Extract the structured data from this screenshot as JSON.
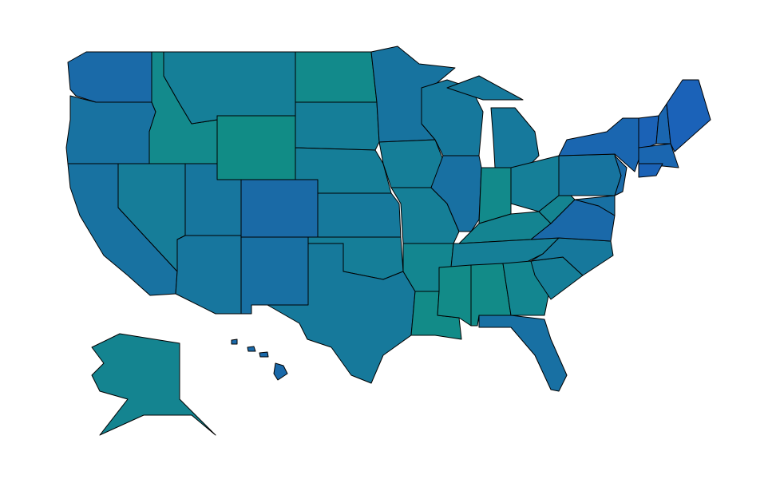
{
  "map": {
    "type": "choropleth",
    "region": "United States",
    "states": [
      {
        "id": "WA",
        "color": "#1a6aa8"
      },
      {
        "id": "OR",
        "color": "#1872a1"
      },
      {
        "id": "CA",
        "color": "#1872a1"
      },
      {
        "id": "NV",
        "color": "#167d99"
      },
      {
        "id": "ID",
        "color": "#138a8c"
      },
      {
        "id": "MT",
        "color": "#157f98"
      },
      {
        "id": "WY",
        "color": "#118c86"
      },
      {
        "id": "UT",
        "color": "#17769e"
      },
      {
        "id": "CO",
        "color": "#1a6aa6"
      },
      {
        "id": "AZ",
        "color": "#17769e"
      },
      {
        "id": "NM",
        "color": "#1870a3"
      },
      {
        "id": "ND",
        "color": "#128a8b"
      },
      {
        "id": "SD",
        "color": "#157e98"
      },
      {
        "id": "NE",
        "color": "#157e98"
      },
      {
        "id": "KS",
        "color": "#16799c"
      },
      {
        "id": "OK",
        "color": "#157e98"
      },
      {
        "id": "TX",
        "color": "#16799b"
      },
      {
        "id": "MN",
        "color": "#17739f"
      },
      {
        "id": "IA",
        "color": "#157e98"
      },
      {
        "id": "MO",
        "color": "#157f97"
      },
      {
        "id": "AR",
        "color": "#138690"
      },
      {
        "id": "LA",
        "color": "#128b88"
      },
      {
        "id": "WI",
        "color": "#16789c"
      },
      {
        "id": "IL",
        "color": "#1870a2"
      },
      {
        "id": "MI",
        "color": "#16799c"
      },
      {
        "id": "IN",
        "color": "#128a8b"
      },
      {
        "id": "OH",
        "color": "#157f98"
      },
      {
        "id": "KY",
        "color": "#148491"
      },
      {
        "id": "TN",
        "color": "#157f97"
      },
      {
        "id": "MS",
        "color": "#128b88"
      },
      {
        "id": "AL",
        "color": "#128b88"
      },
      {
        "id": "GA",
        "color": "#138690"
      },
      {
        "id": "FL",
        "color": "#1870a3"
      },
      {
        "id": "SC",
        "color": "#157e98"
      },
      {
        "id": "NC",
        "color": "#16789c"
      },
      {
        "id": "VA",
        "color": "#1a69a9"
      },
      {
        "id": "WV",
        "color": "#148491"
      },
      {
        "id": "PA",
        "color": "#17749f"
      },
      {
        "id": "NY",
        "color": "#1a66b0"
      },
      {
        "id": "NJ",
        "color": "#1a6aa8"
      },
      {
        "id": "MD",
        "color": "#1870a3"
      },
      {
        "id": "VT",
        "color": "#1b62b6"
      },
      {
        "id": "NH",
        "color": "#1a66b0"
      },
      {
        "id": "ME",
        "color": "#1b62b8"
      },
      {
        "id": "MA",
        "color": "#1a66b0"
      },
      {
        "id": "CT",
        "color": "#1b62b6"
      },
      {
        "id": "AK",
        "color": "#148490"
      },
      {
        "id": "HI",
        "color": "#1a69a9"
      }
    ]
  }
}
